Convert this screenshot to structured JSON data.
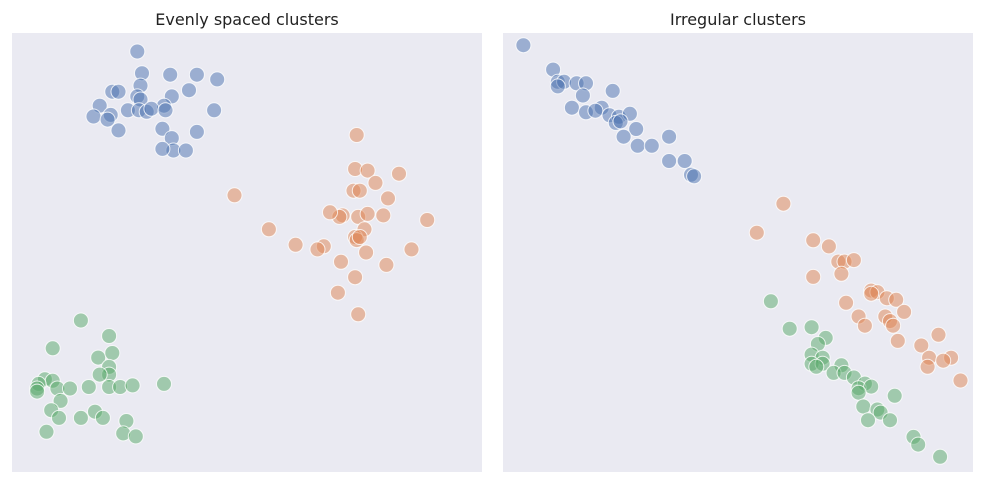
{
  "palette": [
    "#4c72b0",
    "#dd8452",
    "#55a868"
  ],
  "background": "#eaeaf2",
  "chart_data": [
    {
      "type": "scatter",
      "title": "Evenly spaced clusters",
      "xlim": [
        -8.4,
        6.6
      ],
      "ylim": [
        -10.6,
        3.6
      ],
      "grid": false,
      "series": [
        {
          "color": "#4c72b0",
          "points": [
            [
              -4.4,
              3.0
            ],
            [
              -4.25,
              2.3
            ],
            [
              -4.3,
              1.9
            ],
            [
              -3.35,
              2.25
            ],
            [
              -2.5,
              2.25
            ],
            [
              -1.85,
              2.1
            ],
            [
              -5.2,
              1.7
            ],
            [
              -5.0,
              1.7
            ],
            [
              -4.4,
              1.55
            ],
            [
              -4.3,
              1.45
            ],
            [
              -3.3,
              1.55
            ],
            [
              -2.75,
              1.75
            ],
            [
              -3.55,
              1.25
            ],
            [
              -1.95,
              1.1
            ],
            [
              -5.6,
              1.25
            ],
            [
              -5.25,
              0.95
            ],
            [
              -4.7,
              1.1
            ],
            [
              -4.35,
              1.1
            ],
            [
              -4.1,
              1.05
            ],
            [
              -3.95,
              1.15
            ],
            [
              -3.5,
              1.1
            ],
            [
              -5.8,
              0.9
            ],
            [
              -5.35,
              0.8
            ],
            [
              -5.0,
              0.45
            ],
            [
              -3.6,
              0.5
            ],
            [
              -3.3,
              0.2
            ],
            [
              -3.25,
              -0.2
            ],
            [
              -2.5,
              0.4
            ],
            [
              -2.85,
              -0.2
            ],
            [
              -3.6,
              -0.15
            ]
          ]
        },
        {
          "color": "#dd8452",
          "points": [
            [
              2.6,
              0.3
            ],
            [
              2.55,
              -0.8
            ],
            [
              2.95,
              -0.85
            ],
            [
              3.95,
              -0.95
            ],
            [
              2.5,
              -1.5
            ],
            [
              2.7,
              -1.5
            ],
            [
              3.2,
              -1.25
            ],
            [
              3.6,
              -1.75
            ],
            [
              2.15,
              -2.3
            ],
            [
              2.05,
              -2.35
            ],
            [
              2.65,
              -2.35
            ],
            [
              1.75,
              -2.2
            ],
            [
              2.95,
              -2.25
            ],
            [
              3.45,
              -2.3
            ],
            [
              2.85,
              -2.75
            ],
            [
              4.85,
              -2.45
            ],
            [
              2.55,
              -3.0
            ],
            [
              2.6,
              -3.1
            ],
            [
              2.7,
              -3.0
            ],
            [
              1.55,
              -3.3
            ],
            [
              1.35,
              -3.4
            ],
            [
              2.9,
              -3.5
            ],
            [
              4.35,
              -3.4
            ],
            [
              2.1,
              -3.8
            ],
            [
              3.55,
              -3.9
            ],
            [
              2.55,
              -4.3
            ],
            [
              2.0,
              -4.8
            ],
            [
              2.65,
              -5.5
            ],
            [
              -1.3,
              -1.65
            ],
            [
              -0.2,
              -2.75
            ],
            [
              0.65,
              -3.25
            ]
          ]
        },
        {
          "color": "#55a868",
          "points": [
            [
              -6.2,
              -5.7
            ],
            [
              -5.3,
              -6.2
            ],
            [
              -7.1,
              -6.6
            ],
            [
              -5.65,
              -6.9
            ],
            [
              -5.2,
              -6.75
            ],
            [
              -5.3,
              -7.2
            ],
            [
              -5.3,
              -7.45
            ],
            [
              -5.6,
              -7.45
            ],
            [
              -7.35,
              -7.6
            ],
            [
              -7.1,
              -7.65
            ],
            [
              -7.55,
              -7.75
            ],
            [
              -7.6,
              -7.9
            ],
            [
              -7.6,
              -8.0
            ],
            [
              -6.95,
              -7.9
            ],
            [
              -6.55,
              -7.9
            ],
            [
              -5.95,
              -7.85
            ],
            [
              -5.3,
              -7.85
            ],
            [
              -4.95,
              -7.85
            ],
            [
              -4.55,
              -7.8
            ],
            [
              -3.55,
              -7.75
            ],
            [
              -6.85,
              -8.3
            ],
            [
              -7.15,
              -8.6
            ],
            [
              -6.9,
              -8.85
            ],
            [
              -6.2,
              -8.85
            ],
            [
              -5.75,
              -8.65
            ],
            [
              -5.5,
              -8.85
            ],
            [
              -4.75,
              -8.95
            ],
            [
              -7.3,
              -9.3
            ],
            [
              -4.85,
              -9.35
            ],
            [
              -4.45,
              -9.45
            ]
          ]
        }
      ]
    },
    {
      "type": "scatter",
      "title": "Irregular clusters",
      "xlim": [
        -1.0,
        14.0
      ],
      "ylim": [
        -14.0,
        0.4
      ],
      "grid": false,
      "series": [
        {
          "color": "#4c72b0",
          "points": [
            [
              -0.35,
              0.0
            ],
            [
              0.6,
              -0.8
            ],
            [
              0.75,
              -1.2
            ],
            [
              0.95,
              -1.2
            ],
            [
              0.75,
              -1.35
            ],
            [
              1.35,
              -1.25
            ],
            [
              1.65,
              -1.25
            ],
            [
              2.5,
              -1.5
            ],
            [
              1.55,
              -1.65
            ],
            [
              2.15,
              -2.05
            ],
            [
              1.2,
              -2.05
            ],
            [
              1.65,
              -2.2
            ],
            [
              1.95,
              -2.15
            ],
            [
              2.4,
              -2.3
            ],
            [
              2.7,
              -2.35
            ],
            [
              3.05,
              -2.25
            ],
            [
              2.6,
              -2.55
            ],
            [
              2.75,
              -2.5
            ],
            [
              3.25,
              -2.75
            ],
            [
              2.85,
              -3.0
            ],
            [
              3.3,
              -3.3
            ],
            [
              3.75,
              -3.3
            ],
            [
              4.3,
              -3.0
            ],
            [
              4.3,
              -3.8
            ],
            [
              4.8,
              -3.8
            ],
            [
              5.0,
              -4.25
            ],
            [
              5.1,
              -4.3
            ]
          ]
        },
        {
          "color": "#dd8452",
          "points": [
            [
              7.95,
              -5.2
            ],
            [
              7.1,
              -6.15
            ],
            [
              8.9,
              -6.4
            ],
            [
              9.4,
              -6.6
            ],
            [
              9.7,
              -7.1
            ],
            [
              9.9,
              -7.1
            ],
            [
              10.2,
              -7.05
            ],
            [
              9.8,
              -7.5
            ],
            [
              8.9,
              -7.6
            ],
            [
              10.75,
              -8.05
            ],
            [
              10.95,
              -8.1
            ],
            [
              10.75,
              -8.15
            ],
            [
              11.25,
              -8.3
            ],
            [
              11.55,
              -8.35
            ],
            [
              9.95,
              -8.45
            ],
            [
              11.8,
              -8.75
            ],
            [
              10.35,
              -8.9
            ],
            [
              11.2,
              -8.9
            ],
            [
              11.35,
              -9.05
            ],
            [
              10.55,
              -9.2
            ],
            [
              11.45,
              -9.2
            ],
            [
              11.6,
              -9.7
            ],
            [
              12.35,
              -9.85
            ],
            [
              12.9,
              -9.5
            ],
            [
              13.3,
              -10.25
            ],
            [
              12.6,
              -10.25
            ],
            [
              12.55,
              -10.55
            ],
            [
              13.05,
              -10.35
            ],
            [
              13.6,
              -11.0
            ]
          ]
        },
        {
          "color": "#55a868",
          "points": [
            [
              7.55,
              -8.4
            ],
            [
              8.15,
              -9.3
            ],
            [
              8.85,
              -9.25
            ],
            [
              9.3,
              -9.6
            ],
            [
              9.05,
              -9.8
            ],
            [
              8.85,
              -10.15
            ],
            [
              9.2,
              -10.25
            ],
            [
              8.85,
              -10.45
            ],
            [
              9.2,
              -10.45
            ],
            [
              9.8,
              -10.5
            ],
            [
              9.0,
              -10.55
            ],
            [
              9.55,
              -10.75
            ],
            [
              9.9,
              -10.75
            ],
            [
              10.2,
              -10.9
            ],
            [
              10.55,
              -11.1
            ],
            [
              10.35,
              -11.25
            ],
            [
              10.75,
              -11.2
            ],
            [
              10.35,
              -11.4
            ],
            [
              11.5,
              -11.5
            ],
            [
              10.5,
              -11.85
            ],
            [
              10.95,
              -11.95
            ],
            [
              11.05,
              -12.05
            ],
            [
              10.65,
              -12.3
            ],
            [
              11.35,
              -12.3
            ],
            [
              12.1,
              -12.85
            ],
            [
              12.25,
              -13.1
            ],
            [
              12.95,
              -13.5
            ]
          ]
        }
      ]
    }
  ]
}
